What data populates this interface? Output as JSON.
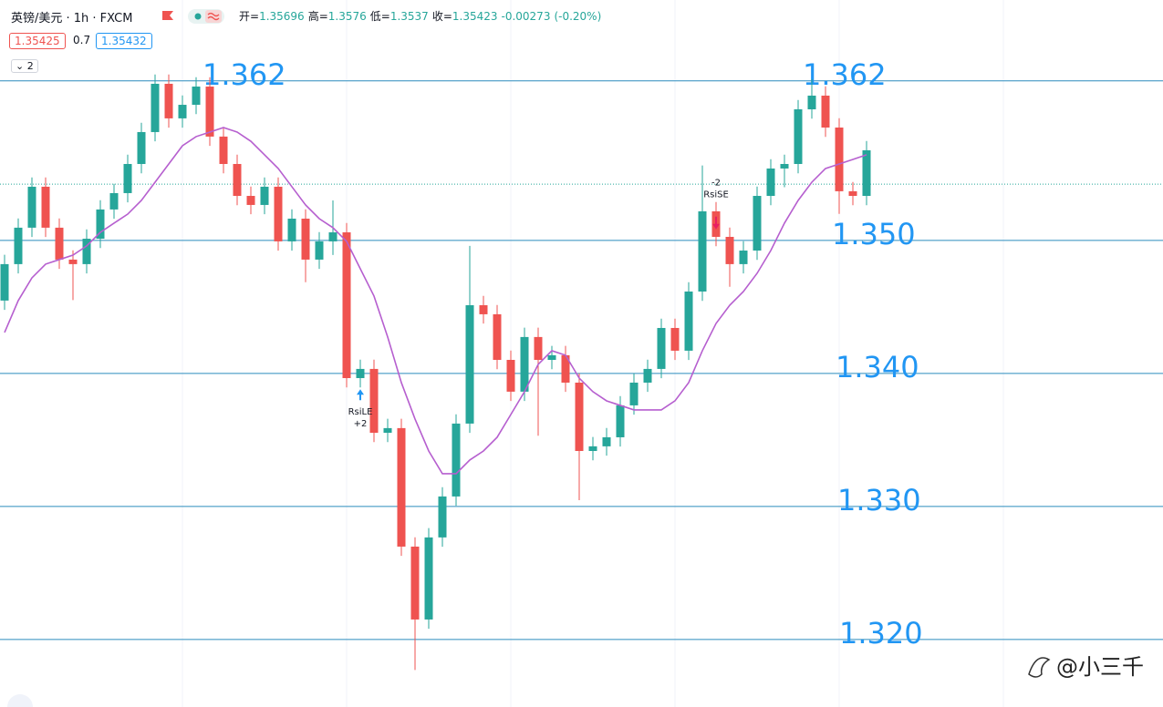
{
  "header": {
    "symbol": "英镑/美元 · 1h · FXCM",
    "ohlc": [
      {
        "label": "开=",
        "value": 1.35696
      },
      {
        "label": "高=",
        "value": 1.3576
      },
      {
        "label": "低=",
        "value": 1.3537
      },
      {
        "label": "收=",
        "value": 1.35423
      }
    ],
    "change": -0.00273,
    "change_pct": "(-0.20%)",
    "sell": 1.35425,
    "spread": 0.7,
    "buy": 1.35432,
    "collapsed_count": 2
  },
  "chart_data": {
    "type": "candlestick",
    "ylim": [
      1.31492,
      1.36808
    ],
    "up_color": "#26a69a",
    "down_color": "#ef5350",
    "ma_color": "#b65fcf",
    "level_color": "#2b8cbe",
    "open": [
      1.34548,
      1.34822,
      1.35096,
      1.35404,
      1.35096,
      1.34856,
      1.34822,
      1.35013,
      1.35233,
      1.35356,
      1.35575,
      1.35815,
      1.36178,
      1.35918,
      1.3602,
      1.36157,
      1.35781,
      1.35575,
      1.35335,
      1.35267,
      1.35404,
      1.34993,
      1.35164,
      1.34856,
      1.34993,
      1.35061,
      1.33965,
      1.34034,
      1.33554,
      1.33589,
      1.32698,
      1.3215,
      1.32767,
      1.33075,
      1.33623,
      1.34513,
      1.34445,
      1.34102,
      1.33863,
      1.34274,
      1.34102,
      1.34137,
      1.33931,
      1.33417,
      1.33452,
      1.3352,
      1.3376,
      1.33931,
      1.34034,
      1.34342,
      1.34171,
      1.34616,
      1.35219,
      1.35027,
      1.34822,
      1.34924,
      1.35335,
      1.35541,
      1.35575,
      1.35986,
      1.36089,
      1.35849,
      1.3537,
      1.35335
    ],
    "high": [
      1.34892,
      1.35166,
      1.35474,
      1.35474,
      1.35166,
      1.34926,
      1.35083,
      1.35303,
      1.35426,
      1.35645,
      1.35885,
      1.36248,
      1.36248,
      1.3609,
      1.36227,
      1.36227,
      1.35851,
      1.35645,
      1.35405,
      1.35474,
      1.35474,
      1.35234,
      1.35234,
      1.35063,
      1.35301,
      1.35131,
      1.34104,
      1.34104,
      1.33659,
      1.33659,
      1.32768,
      1.32837,
      1.33145,
      1.33693,
      1.34959,
      1.34583,
      1.34515,
      1.34172,
      1.34344,
      1.34344,
      1.34207,
      1.34207,
      1.34001,
      1.33522,
      1.3359,
      1.3383,
      1.34001,
      1.34104,
      1.34412,
      1.34412,
      1.34686,
      1.35564,
      1.35289,
      1.35097,
      1.34994,
      1.35405,
      1.35611,
      1.35645,
      1.36056,
      1.36212,
      1.36159,
      1.35919,
      1.3544,
      1.35748
    ],
    "low": [
      1.34478,
      1.34752,
      1.35026,
      1.35026,
      1.34786,
      1.34552,
      1.34752,
      1.34943,
      1.35163,
      1.35286,
      1.35505,
      1.35745,
      1.35848,
      1.35848,
      1.3595,
      1.35711,
      1.35505,
      1.35265,
      1.35197,
      1.35197,
      1.34923,
      1.34923,
      1.34686,
      1.34786,
      1.34891,
      1.33895,
      1.33895,
      1.33484,
      1.33484,
      1.32628,
      1.3177,
      1.3208,
      1.32697,
      1.33005,
      1.33553,
      1.34375,
      1.34032,
      1.33793,
      1.33793,
      1.33532,
      1.34032,
      1.33861,
      1.33047,
      1.33347,
      1.33382,
      1.3345,
      1.3369,
      1.33861,
      1.33964,
      1.34101,
      1.34101,
      1.34546,
      1.34957,
      1.34652,
      1.34752,
      1.34854,
      1.35265,
      1.354,
      1.35505,
      1.35916,
      1.35779,
      1.352,
      1.35265,
      1.35265
    ],
    "close": [
      1.34822,
      1.35096,
      1.35404,
      1.35096,
      1.34856,
      1.34822,
      1.35013,
      1.35233,
      1.35356,
      1.35575,
      1.35815,
      1.36178,
      1.35918,
      1.3602,
      1.36157,
      1.35781,
      1.35575,
      1.35335,
      1.35267,
      1.35404,
      1.34993,
      1.35164,
      1.34856,
      1.34993,
      1.35061,
      1.33965,
      1.34034,
      1.33554,
      1.33589,
      1.32698,
      1.3215,
      1.32767,
      1.33075,
      1.33623,
      1.34513,
      1.34445,
      1.34102,
      1.33863,
      1.34274,
      1.34102,
      1.34137,
      1.33931,
      1.33417,
      1.33452,
      1.3352,
      1.3376,
      1.33931,
      1.34034,
      1.34342,
      1.34171,
      1.34616,
      1.35219,
      1.35027,
      1.34822,
      1.34924,
      1.35335,
      1.35541,
      1.35575,
      1.35986,
      1.36089,
      1.35849,
      1.3537,
      1.35335,
      1.35678
    ],
    "ma": [
      1.34308,
      1.34548,
      1.34719,
      1.34822,
      1.34856,
      1.3489,
      1.34959,
      1.35061,
      1.3513,
      1.35198,
      1.35301,
      1.35438,
      1.35575,
      1.35712,
      1.35781,
      1.35815,
      1.35849,
      1.35815,
      1.35746,
      1.35644,
      1.35541,
      1.35404,
      1.35267,
      1.35164,
      1.35096,
      1.34993,
      1.34787,
      1.34582,
      1.34274,
      1.33931,
      1.33657,
      1.33417,
      1.33246,
      1.33246,
      1.33349,
      1.33417,
      1.3352,
      1.33691,
      1.33863,
      1.34068,
      1.34171,
      1.34137,
      1.33965,
      1.33863,
      1.33794,
      1.3376,
      1.33726,
      1.33726,
      1.33726,
      1.33794,
      1.33931,
      1.34171,
      1.34376,
      1.34513,
      1.34616,
      1.34753,
      1.34924,
      1.3513,
      1.35301,
      1.35438,
      1.35541,
      1.35575,
      1.35609,
      1.35644
    ],
    "levels": [
      {
        "value": 1.362,
        "label": "1.362"
      },
      {
        "value": 1.35,
        "label": "1.350"
      },
      {
        "value": 1.34,
        "label": "1.340"
      },
      {
        "value": 1.33,
        "label": "1.330"
      },
      {
        "value": 1.32,
        "label": "1.320"
      }
    ],
    "signals": [
      {
        "label": "RsiLE",
        "qty": "+2"
      },
      {
        "label": "RsiSE",
        "qty": "-2"
      }
    ],
    "watermark": "@小三千"
  }
}
